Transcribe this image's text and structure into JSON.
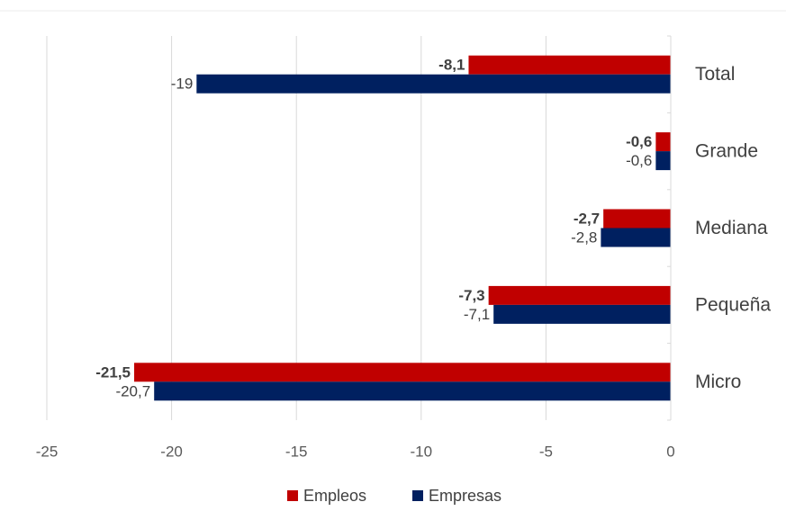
{
  "chart_data": {
    "type": "bar",
    "orientation": "horizontal",
    "categories": [
      "Total",
      "Grande",
      "Mediana",
      "Pequeña",
      "Micro"
    ],
    "series": [
      {
        "name": "Empleos",
        "color": "#C00000",
        "values": [
          -8.1,
          -0.6,
          -2.7,
          -7.3,
          -21.5
        ],
        "labels": [
          "-8,1",
          "-0,6",
          "-2,7",
          "-7,3",
          "-21,5"
        ],
        "label_bold": true
      },
      {
        "name": "Empresas",
        "color": "#002060",
        "values": [
          -19,
          -0.6,
          -2.8,
          -7.1,
          -20.7
        ],
        "labels": [
          "-19",
          "-0,6",
          "-2,8",
          "-7,1",
          "-20,7"
        ],
        "label_bold": false
      }
    ],
    "xlim": [
      -25,
      0
    ],
    "xticks": [
      -25,
      -20,
      -15,
      -10,
      -5,
      0
    ],
    "xtick_labels": [
      "-25",
      "-20",
      "-15",
      "-10",
      "-5",
      "0"
    ],
    "grid": "vertical",
    "legend_position": "bottom"
  }
}
